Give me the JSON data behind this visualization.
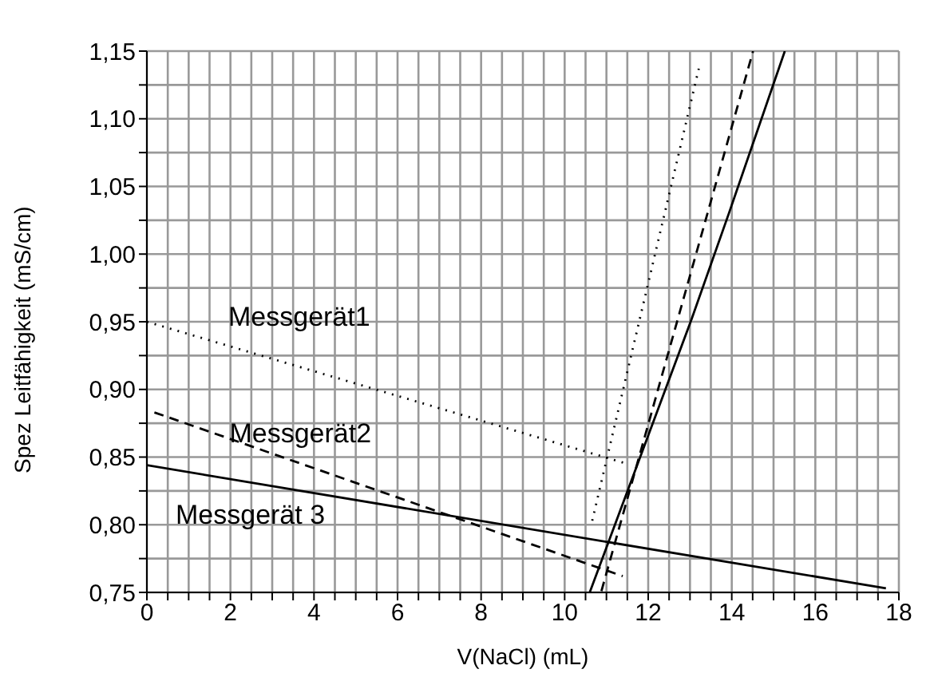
{
  "chart_data": {
    "type": "line",
    "xlabel": "V(NaCl) (mL)",
    "ylabel": "Spez Leitfähigkeit (mS/cm)",
    "xlim": [
      0,
      18
    ],
    "ylim": [
      0.75,
      1.15
    ],
    "xticks": [
      0,
      {
        "value": 0.5,
        "label": null
      },
      {
        "value": 1,
        "label": null
      },
      {
        "value": 1.5,
        "label": null
      },
      2,
      {
        "value": 2.5,
        "label": null
      },
      {
        "value": 3,
        "label": null
      },
      {
        "value": 3.5,
        "label": null
      },
      4,
      {
        "value": 4.5,
        "label": null
      },
      {
        "value": 5,
        "label": null
      },
      {
        "value": 5.5,
        "label": null
      },
      6,
      {
        "value": 6.5,
        "label": null
      },
      {
        "value": 7,
        "label": null
      },
      {
        "value": 7.5,
        "label": null
      },
      8,
      {
        "value": 8.5,
        "label": null
      },
      {
        "value": 9,
        "label": null
      },
      {
        "value": 9.5,
        "label": null
      },
      10,
      {
        "value": 10.5,
        "label": null
      },
      {
        "value": 11,
        "label": null
      },
      {
        "value": 11.5,
        "label": null
      },
      12,
      {
        "value": 12.5,
        "label": null
      },
      {
        "value": 13,
        "label": null
      },
      {
        "value": 13.5,
        "label": null
      },
      14,
      {
        "value": 14.5,
        "label": null
      },
      {
        "value": 15,
        "label": null
      },
      {
        "value": 15.5,
        "label": null
      },
      16,
      {
        "value": 16.5,
        "label": null
      },
      {
        "value": 17,
        "label": null
      },
      {
        "value": 17.5,
        "label": null
      },
      18
    ],
    "yticks": [
      {
        "value": 0.75,
        "label": "0,75"
      },
      {
        "value": 0.775,
        "label": null
      },
      {
        "value": 0.8,
        "label": "0,80"
      },
      {
        "value": 0.825,
        "label": null
      },
      {
        "value": 0.85,
        "label": "0,85"
      },
      {
        "value": 0.875,
        "label": null
      },
      {
        "value": 0.9,
        "label": "0,90"
      },
      {
        "value": 0.925,
        "label": null
      },
      {
        "value": 0.95,
        "label": "0,95"
      },
      {
        "value": 0.975,
        "label": null
      },
      {
        "value": 1.0,
        "label": "1,00"
      },
      {
        "value": 1.025,
        "label": null
      },
      {
        "value": 1.05,
        "label": "1,05"
      },
      {
        "value": 1.075,
        "label": null
      },
      {
        "value": 1.1,
        "label": "1,10"
      },
      {
        "value": 1.125,
        "label": null
      },
      {
        "value": 1.15,
        "label": "1,15"
      }
    ],
    "grid": true,
    "legend": false,
    "marker": "none",
    "series": [
      {
        "name": "Messgerät1",
        "color": "#000000",
        "line_style": "dotted",
        "x": [
          0,
          11.5
        ],
        "values": [
          0.95,
          0.845
        ]
      },
      {
        "color": "#000000",
        "line_style": "dotted",
        "x": [
          10.66,
          13.21
        ],
        "values": [
          0.803,
          1.137
        ]
      },
      {
        "name": "Messgerät2",
        "color": "#000000",
        "line_style": "dashed",
        "x": [
          0.18,
          11.39
        ],
        "values": [
          0.883,
          0.762
        ]
      },
      {
        "color": "#000000",
        "line_style": "dashed",
        "x": [
          10.88,
          14.51
        ],
        "values": [
          0.751,
          1.15
        ]
      },
      {
        "name": "Messgerät 3",
        "color": "#000000",
        "line_style": "solid",
        "x": [
          0,
          17.69
        ],
        "values": [
          0.844,
          0.753
        ]
      },
      {
        "color": "#000000",
        "line_style": "solid",
        "x": [
          10.6,
          13.04,
          13.93,
          15.27
        ],
        "values": [
          0.75,
          0.952,
          1.03,
          1.15
        ]
      }
    ]
  }
}
